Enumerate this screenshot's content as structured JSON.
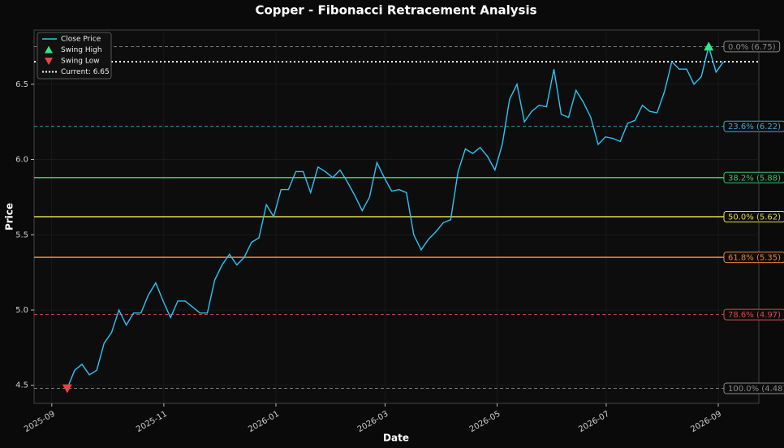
{
  "chart_data": {
    "type": "line",
    "title": "Copper - Fibonacci Retracement Analysis",
    "xlabel": "Date",
    "ylabel": "Price",
    "x": [
      0,
      1,
      2,
      3,
      4,
      5,
      6,
      7,
      8,
      9,
      10,
      11,
      12,
      13,
      14,
      15,
      16,
      17,
      18,
      19,
      20,
      21,
      22,
      23,
      24,
      25,
      26,
      27,
      28,
      29,
      30,
      31,
      32,
      33,
      34,
      35,
      36,
      37,
      38,
      39,
      40,
      41,
      42,
      43,
      44,
      45,
      46,
      47,
      48,
      49,
      50,
      51,
      52,
      53,
      54,
      55,
      56,
      57,
      58,
      59,
      60,
      61,
      62,
      63,
      64,
      65,
      66,
      67,
      68,
      69,
      70,
      71,
      72,
      73,
      74,
      75,
      76,
      77,
      78,
      79,
      80,
      81,
      82,
      83,
      84,
      85,
      86,
      87,
      88,
      89
    ],
    "series": [
      {
        "name": "Close Price",
        "color": "#29c5f6",
        "values": [
          4.48,
          4.6,
          4.64,
          4.57,
          4.6,
          4.78,
          4.85,
          5.0,
          4.9,
          4.98,
          4.98,
          5.1,
          5.18,
          5.06,
          4.95,
          5.06,
          5.06,
          5.02,
          4.98,
          4.98,
          5.2,
          5.3,
          5.37,
          5.3,
          5.35,
          5.45,
          5.48,
          5.7,
          5.62,
          5.8,
          5.8,
          5.92,
          5.92,
          5.78,
          5.95,
          5.92,
          5.88,
          5.93,
          5.85,
          5.76,
          5.66,
          5.75,
          5.98,
          5.88,
          5.79,
          5.8,
          5.78,
          5.5,
          5.4,
          5.47,
          5.52,
          5.58,
          5.6,
          5.92,
          6.07,
          6.04,
          6.08,
          6.02,
          5.93,
          6.1,
          6.4,
          6.5,
          6.25,
          6.32,
          6.36,
          6.35,
          6.6,
          6.3,
          6.28,
          6.46,
          6.38,
          6.28,
          6.1,
          6.15,
          6.14,
          6.12,
          6.24,
          6.26,
          6.36,
          6.32,
          6.31,
          6.45,
          6.65,
          6.6,
          6.6,
          6.5,
          6.55,
          6.75,
          6.58,
          6.65
        ]
      }
    ],
    "swing_high": {
      "name": "Swing High",
      "color": "#2ee88a",
      "x": 87,
      "value": 6.75
    },
    "swing_low": {
      "name": "Swing Low",
      "color": "#e84545",
      "x": 0,
      "value": 4.48
    },
    "current": {
      "name": "Current: 6.65",
      "value": 6.65,
      "color": "#ffffff"
    },
    "levels": [
      {
        "label": "0.0% (6.75)",
        "value": 6.75,
        "color": "#8a8a8a",
        "style": "dashed"
      },
      {
        "label": "23.6% (6.22)",
        "value": 6.22,
        "color": "#3aa6dc",
        "style": "dashed"
      },
      {
        "label": "38.2% (5.88)",
        "value": 5.88,
        "color": "#35c46a",
        "style": "solid"
      },
      {
        "label": "50.0% (5.62)",
        "value": 5.62,
        "color": "#e3d84a",
        "style": "solid"
      },
      {
        "label": "61.8% (5.35)",
        "value": 5.35,
        "color": "#e8843a",
        "style": "solid"
      },
      {
        "label": "78.6% (4.97)",
        "value": 4.97,
        "color": "#e04848",
        "style": "dashed"
      },
      {
        "label": "100.0% (4.48)",
        "value": 4.48,
        "color": "#8a8a8a",
        "style": "dashed"
      }
    ],
    "xlim": [
      -4.5,
      93.8
    ],
    "xticks": [
      {
        "value": -2.1,
        "label": "2025-09"
      },
      {
        "value": 13.1,
        "label": "2025-11"
      },
      {
        "value": 28.3,
        "label": "2026-01"
      },
      {
        "value": 43.1,
        "label": "2026-03"
      },
      {
        "value": 58.3,
        "label": "2026-05"
      },
      {
        "value": 73.1,
        "label": "2026-07"
      },
      {
        "value": 88.3,
        "label": "2026-09"
      }
    ],
    "ylim": [
      4.38,
      6.86
    ],
    "yticks": [
      4.5,
      {
        "value": 5,
        "label": "5.0"
      },
      5.5,
      {
        "value": 6,
        "label": "6.0"
      },
      6.5
    ],
    "grid": true,
    "legend": "upper left"
  }
}
